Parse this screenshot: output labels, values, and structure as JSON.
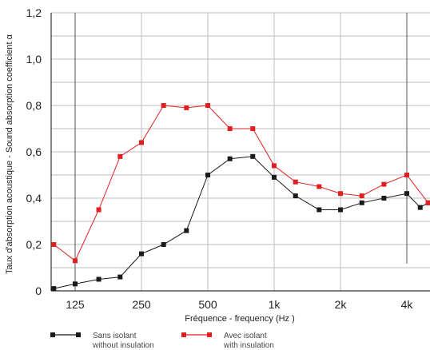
{
  "chart_data": {
    "type": "line",
    "xlabel": "Fréquence - frequency (Hz  )",
    "ylabel": "Taux d'absorption acoustique - Sound absorption coefficient α",
    "ylim": [
      0,
      1.2
    ],
    "y_ticks": [
      "0",
      "0,2",
      "0,4",
      "0,6",
      "0,8",
      "1,0",
      "1,2"
    ],
    "x_ticks": [
      {
        "hz": 125,
        "label": "125"
      },
      {
        "hz": 250,
        "label": "250"
      },
      {
        "hz": 500,
        "label": "500"
      },
      {
        "hz": 1000,
        "label": "1k"
      },
      {
        "hz": 2000,
        "label": "2k"
      },
      {
        "hz": 4000,
        "label": "4k"
      }
    ],
    "x_scale": "log",
    "grid": true,
    "legend_position": "bottom-left",
    "series": [
      {
        "name": "Sans isolant",
        "name_en": "without insulation",
        "color": "#1a1a1a",
        "points": [
          [
            100,
            0.01
          ],
          [
            125,
            0.03
          ],
          [
            160,
            0.05
          ],
          [
            200,
            0.06
          ],
          [
            250,
            0.16
          ],
          [
            315,
            0.2
          ],
          [
            400,
            0.26
          ],
          [
            500,
            0.5
          ],
          [
            630,
            0.57
          ],
          [
            800,
            0.58
          ],
          [
            1000,
            0.49
          ],
          [
            1250,
            0.41
          ],
          [
            1600,
            0.35
          ],
          [
            2000,
            0.35
          ],
          [
            2500,
            0.38
          ],
          [
            3150,
            0.4
          ],
          [
            4000,
            0.42
          ],
          [
            4600,
            0.36
          ],
          [
            5000,
            0.38
          ]
        ]
      },
      {
        "name": "Avec isolant",
        "name_en": "with insulation",
        "color": "#e02020",
        "points": [
          [
            100,
            0.2
          ],
          [
            125,
            0.13
          ],
          [
            160,
            0.35
          ],
          [
            200,
            0.58
          ],
          [
            250,
            0.64
          ],
          [
            315,
            0.8
          ],
          [
            400,
            0.79
          ],
          [
            500,
            0.8
          ],
          [
            630,
            0.7
          ],
          [
            800,
            0.7
          ],
          [
            1000,
            0.54
          ],
          [
            1250,
            0.47
          ],
          [
            1600,
            0.45
          ],
          [
            2000,
            0.42
          ],
          [
            2500,
            0.41
          ],
          [
            3150,
            0.46
          ],
          [
            4000,
            0.5
          ],
          [
            5000,
            0.38
          ]
        ]
      }
    ]
  }
}
